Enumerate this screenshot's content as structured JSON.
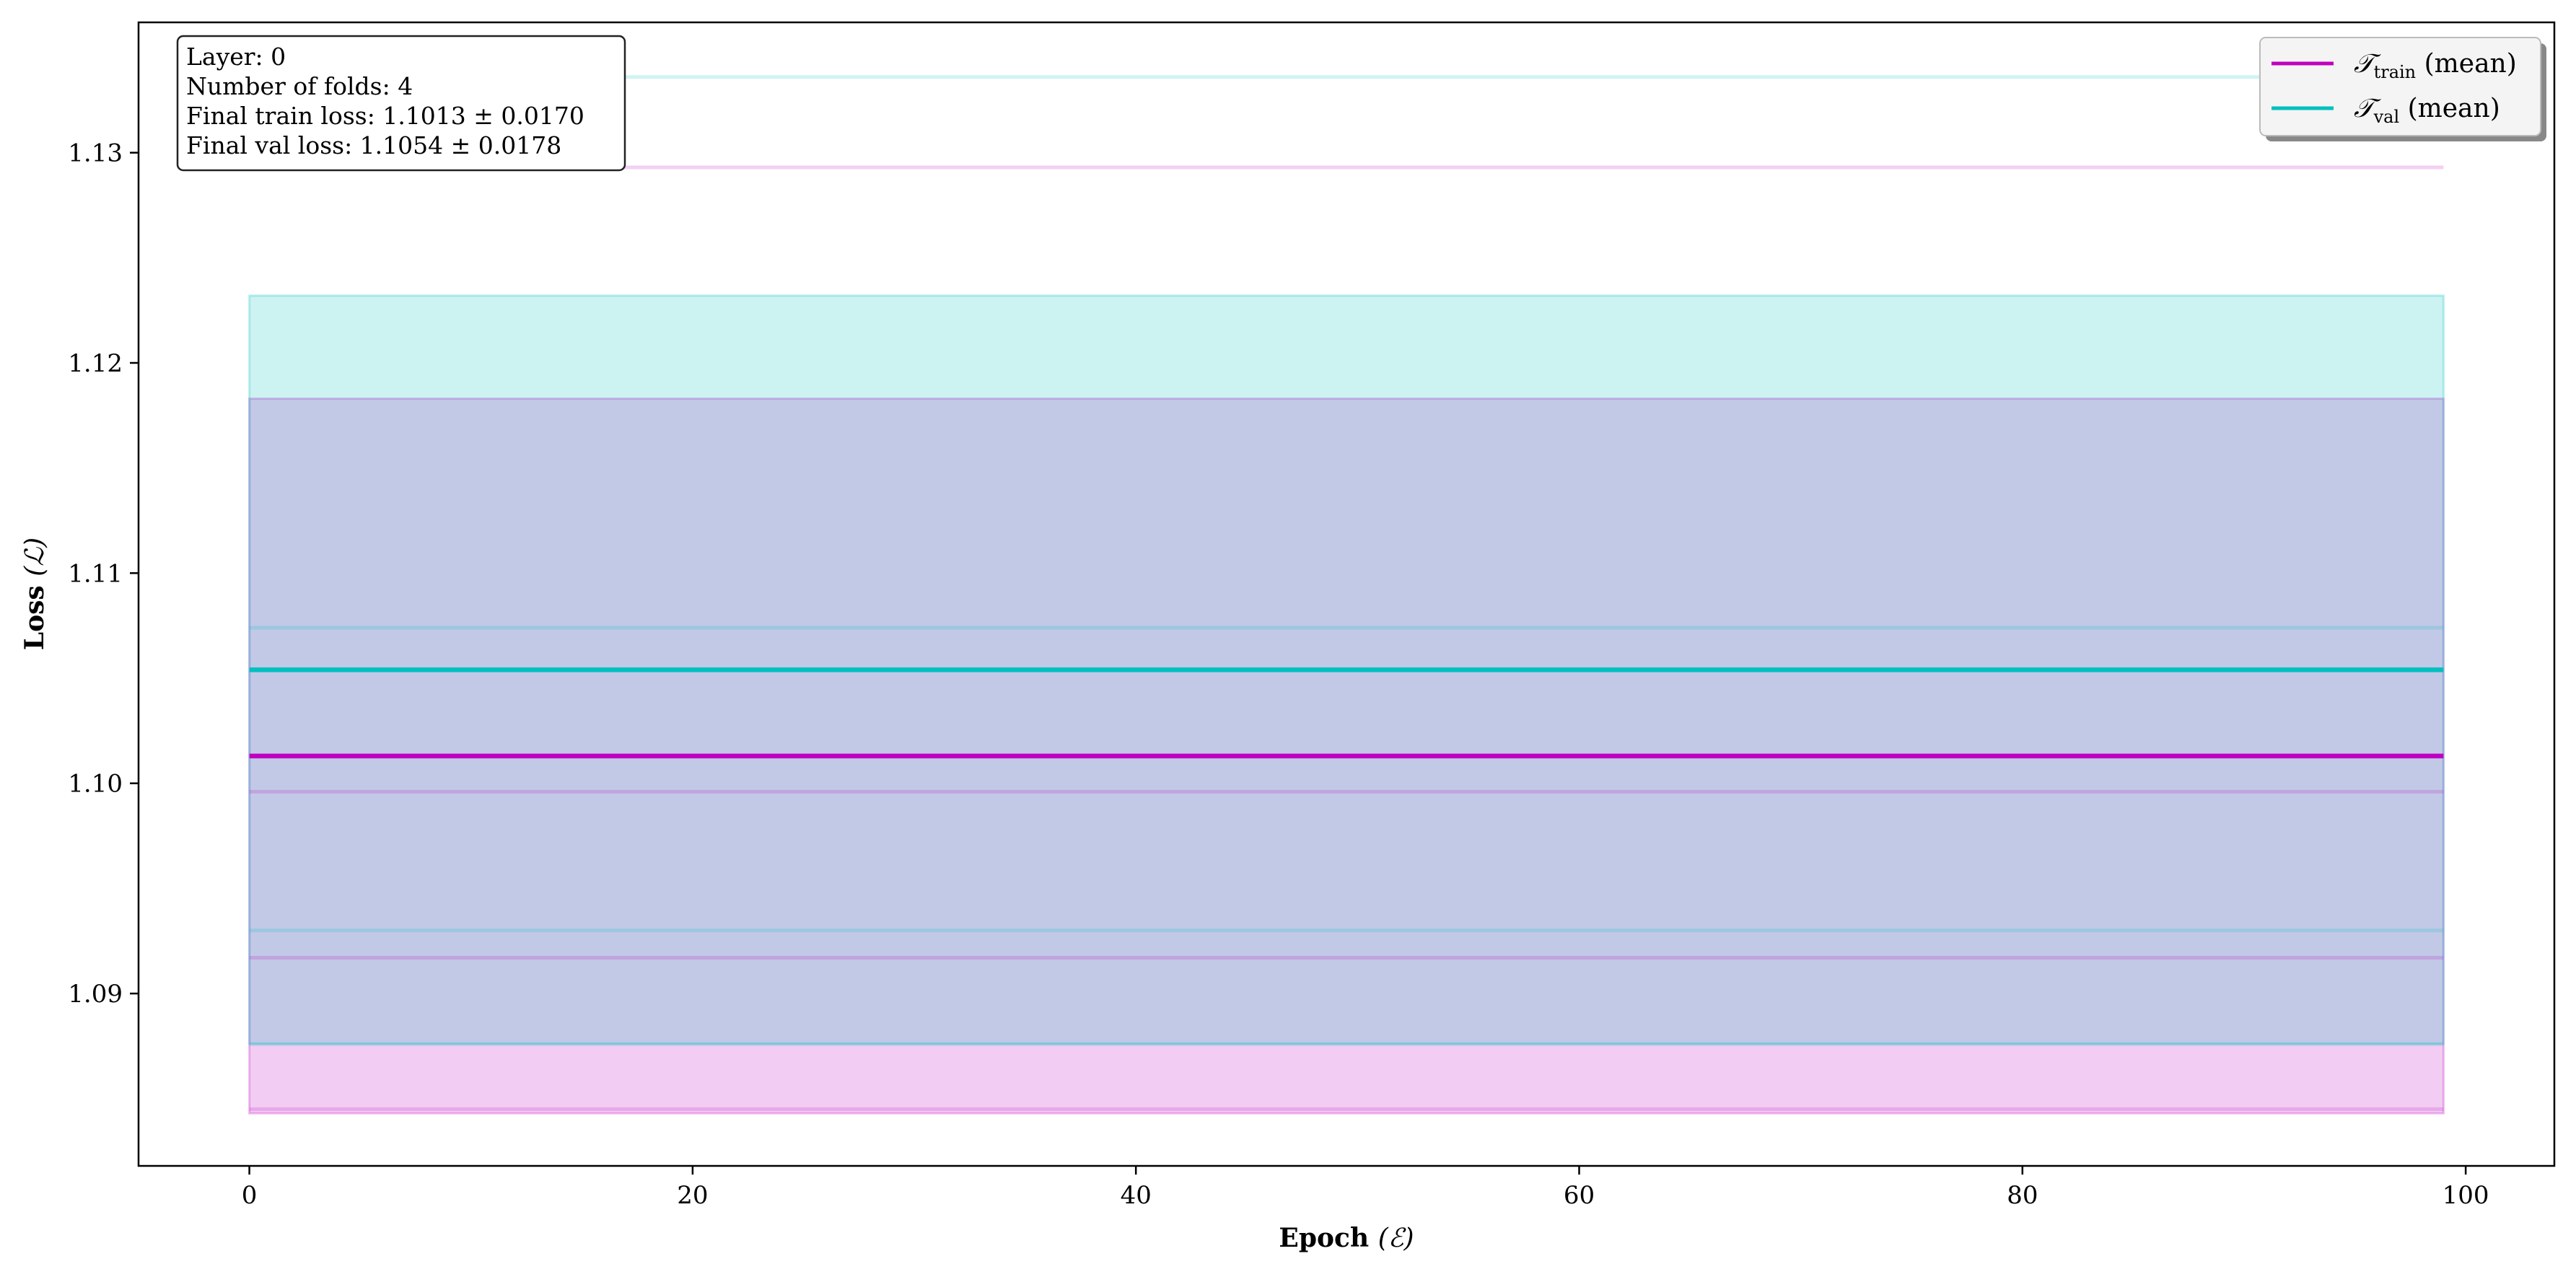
{
  "chart_data": {
    "type": "line",
    "xlabel_main": "Epoch",
    "xlabel_sym": "(ℰ)",
    "ylabel_main": "Loss",
    "ylabel_sym": "(ℒ)",
    "xlim": [
      -5,
      104
    ],
    "ylim": [
      1.0818,
      1.1362
    ],
    "x_range": [
      0,
      99
    ],
    "xticks": [
      0,
      20,
      40,
      60,
      80,
      100
    ],
    "yticks": [
      1.09,
      1.1,
      1.11,
      1.12,
      1.13
    ],
    "xtick_labels": [
      "0",
      "20",
      "40",
      "60",
      "80",
      "100"
    ],
    "ytick_labels": [
      "1.09",
      "1.10",
      "1.11",
      "1.12",
      "1.13"
    ],
    "grid": false,
    "legend_placement": "top-right",
    "series": [
      {
        "key": "train",
        "legend_main": "𝒯",
        "legend_sub": "train",
        "legend_suffix": " (mean)",
        "color": "#bf00bf",
        "mean": 1.1013,
        "std": 0.017,
        "folds": [
          1.1293,
          1.0996,
          1.0917,
          1.0845
        ]
      },
      {
        "key": "val",
        "legend_main": "𝒯",
        "legend_sub": "val",
        "legend_suffix": " (mean)",
        "color": "#00bfbf",
        "mean": 1.1054,
        "std": 0.0178,
        "folds": [
          1.1336,
          1.1074,
          1.093,
          1.0876
        ]
      }
    ],
    "annotation_lines": [
      "Layer: 0",
      "Number of folds: 4",
      "Final train loss: 1.1013 ± 0.0170",
      "Final val loss: 1.1054 ± 0.0178"
    ]
  }
}
